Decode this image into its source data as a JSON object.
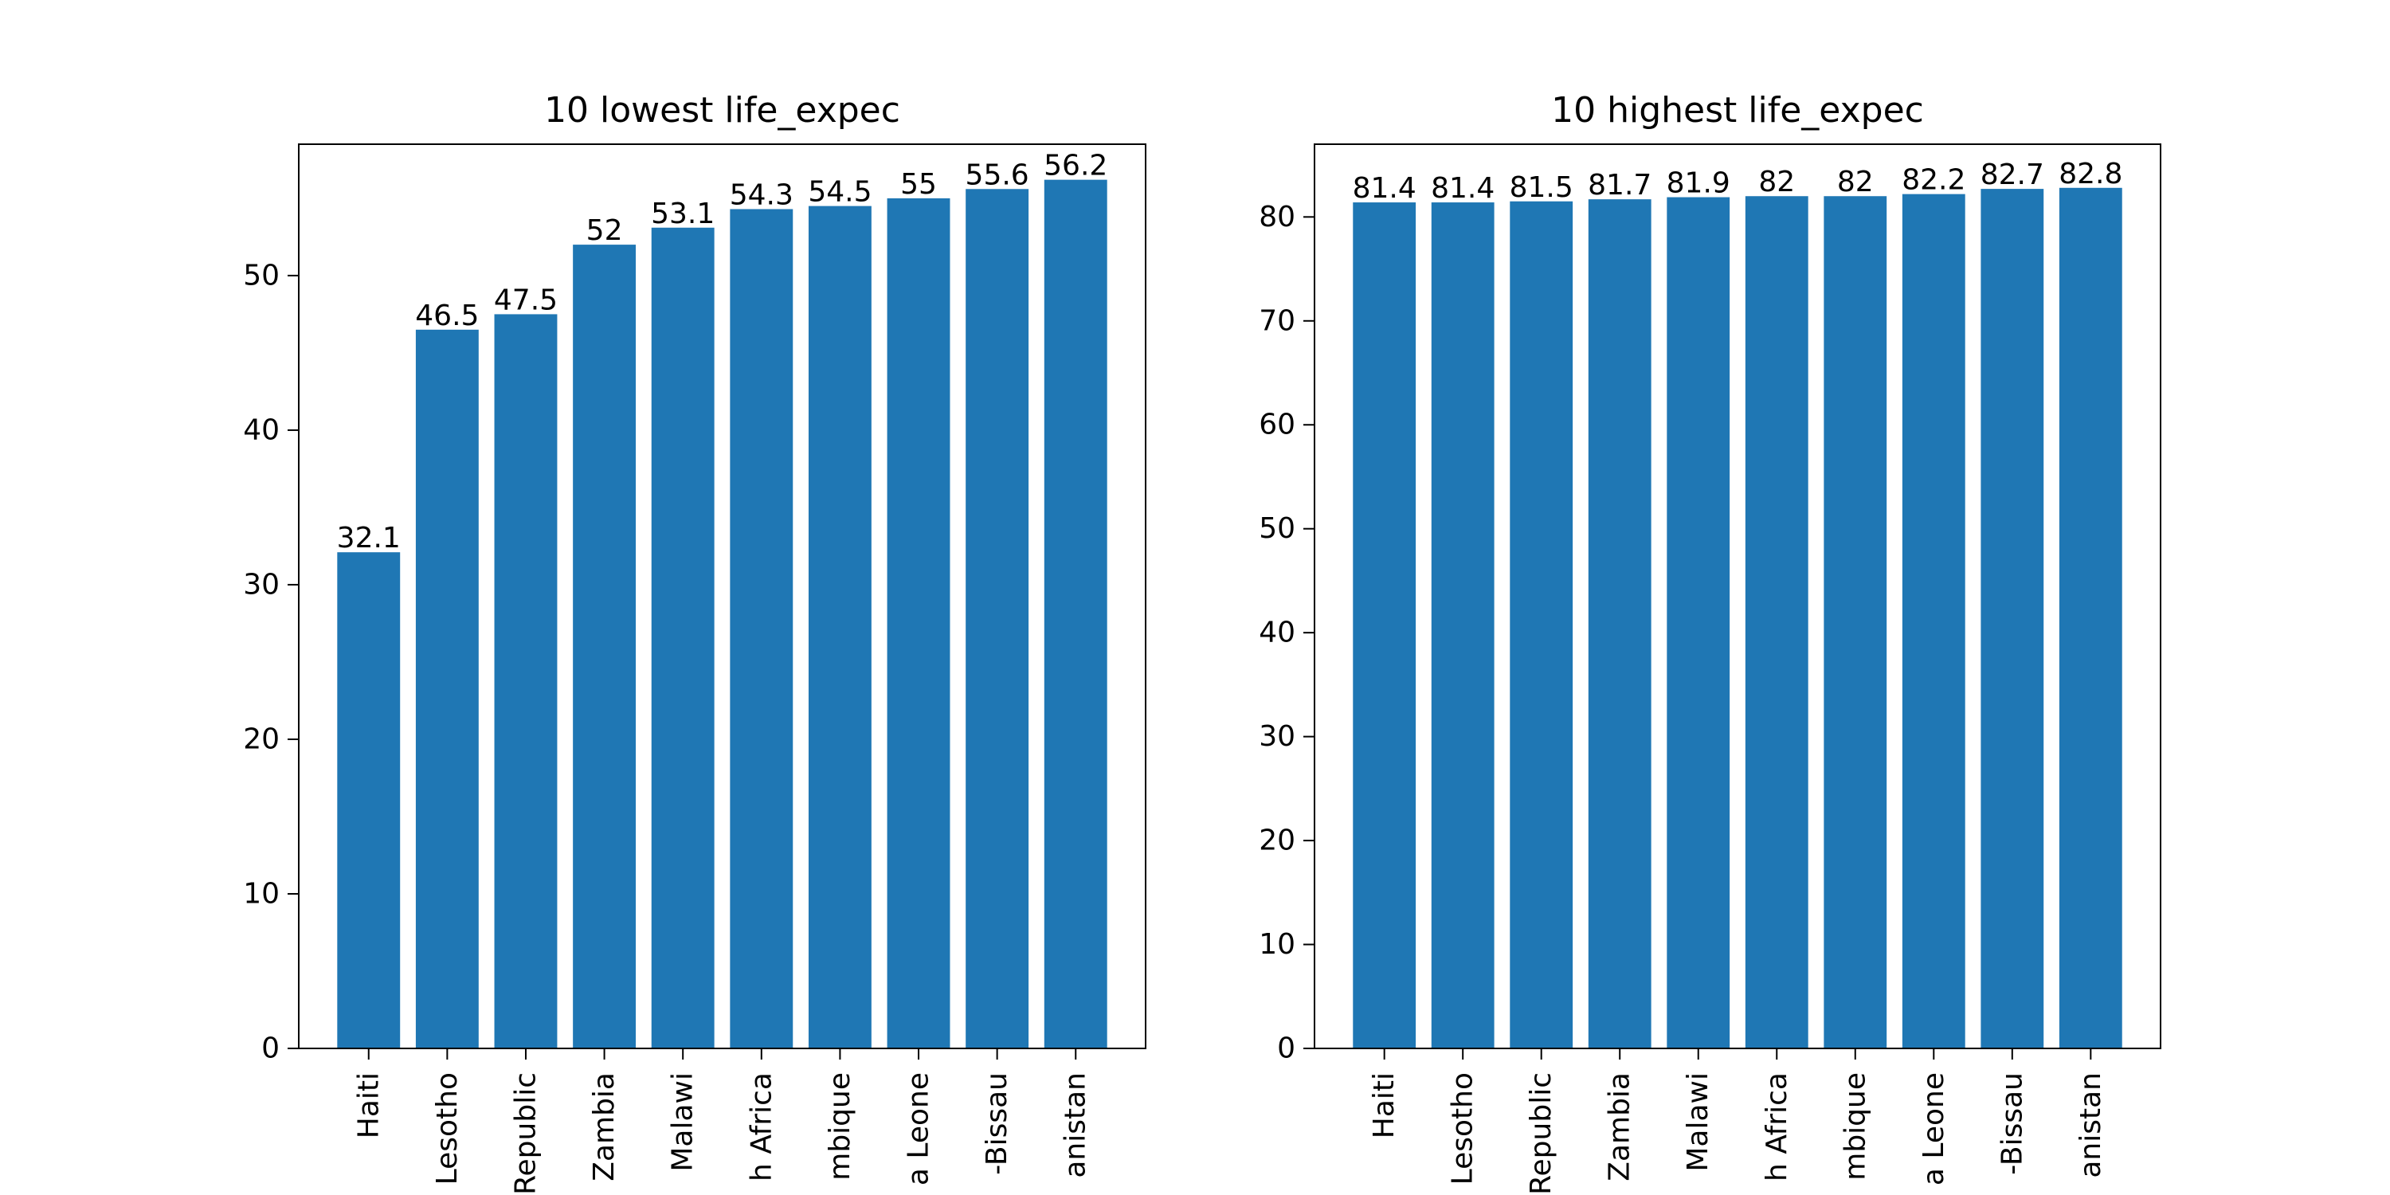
{
  "colors": {
    "bar": "#1f77b4",
    "axes": "#000000",
    "background": "#ffffff"
  },
  "chart_data": [
    {
      "type": "bar",
      "title": "10 lowest life_expec",
      "xlabel": "",
      "ylabel": "",
      "ylim": [
        0,
        58.5
      ],
      "yticks": [
        0,
        10,
        20,
        30,
        40,
        50
      ],
      "grid": false,
      "categories": [
        "Haiti",
        "Lesotho",
        "Republic",
        "Zambia",
        "Malawi",
        "h Africa",
        "mbique",
        "a Leone",
        "-Bissau",
        "anistan"
      ],
      "values": [
        32.1,
        46.5,
        47.5,
        52,
        53.1,
        54.3,
        54.5,
        55,
        55.6,
        56.2
      ],
      "value_labels": [
        "32.1",
        "46.5",
        "47.5",
        "52",
        "53.1",
        "54.3",
        "54.5",
        "55",
        "55.6",
        "56.2"
      ]
    },
    {
      "type": "bar",
      "title": "10 highest life_expec",
      "xlabel": "",
      "ylabel": "",
      "ylim": [
        0,
        87
      ],
      "yticks": [
        0,
        10,
        20,
        30,
        40,
        50,
        60,
        70,
        80
      ],
      "grid": false,
      "categories": [
        "Haiti",
        "Lesotho",
        "Republic",
        "Zambia",
        "Malawi",
        "h Africa",
        "mbique",
        "a Leone",
        "-Bissau",
        "anistan"
      ],
      "values": [
        81.4,
        81.4,
        81.5,
        81.7,
        81.9,
        82,
        82,
        82.2,
        82.7,
        82.8
      ],
      "value_labels": [
        "81.4",
        "81.4",
        "81.5",
        "81.7",
        "81.9",
        "82",
        "82",
        "82.2",
        "82.7",
        "82.8"
      ]
    }
  ]
}
